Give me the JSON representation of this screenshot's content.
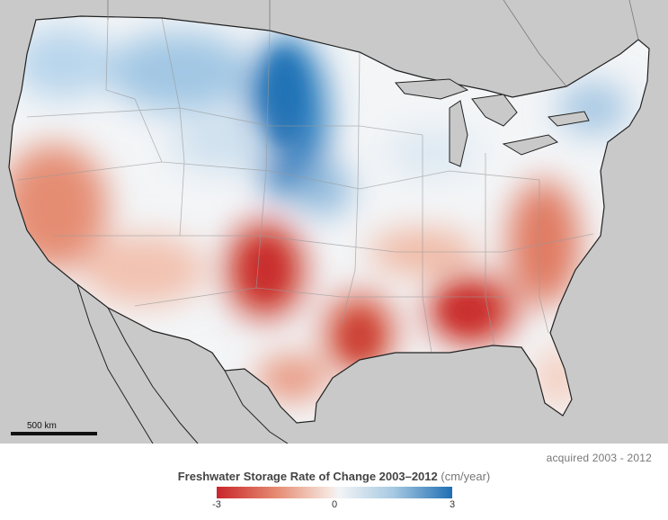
{
  "map": {
    "title": "Freshwater Storage Rate of Change 2003–2012",
    "scale_label": "500 km",
    "colors": {
      "background": "#c9c9c9",
      "neutral": "#f3f5f7",
      "blue_strong": "#1f6fb3",
      "blue_light": "#a7c9e2",
      "red_strong": "#c8262b",
      "red_light": "#e58a70"
    }
  },
  "credit": {
    "acquired": "acquired 2003 - 2012"
  },
  "legend": {
    "title": "Freshwater Storage Rate of Change 2003–2012",
    "unit": "(cm/year)",
    "ticks": [
      "-3",
      "0",
      "3"
    ],
    "range": [
      -3,
      3
    ]
  }
}
